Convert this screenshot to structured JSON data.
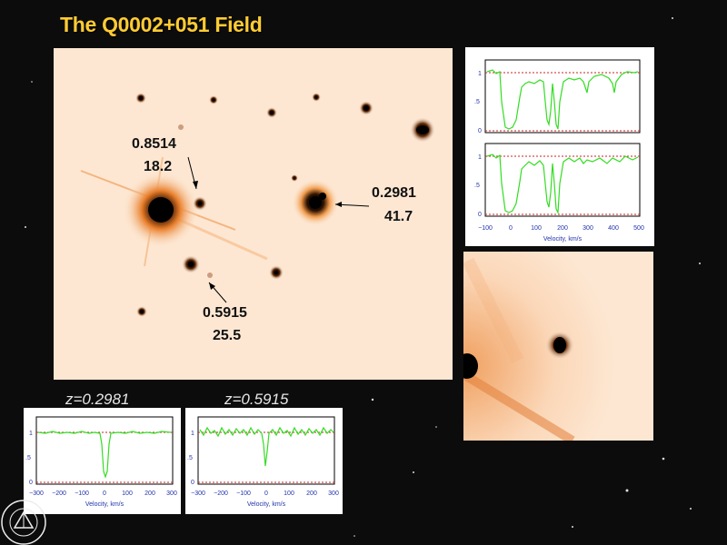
{
  "title": "The Q0002+051 Field",
  "galaxies": [
    {
      "redshift": "0.8514",
      "value": "18.2"
    },
    {
      "redshift": "0.2981",
      "value": "41.7"
    },
    {
      "redshift": "0.5915",
      "value": "25.5"
    }
  ],
  "spectra": {
    "bottom_left_label": "z=0.2981",
    "bottom_right_label": "z=0.5915",
    "x_axis_label": "Velocity, km/s",
    "y_ticks": [
      "1",
      ".5",
      "0"
    ],
    "bottom_x_ticks": [
      "−300",
      "−200",
      "−100",
      "0",
      "100",
      "200",
      "300"
    ],
    "right_x_ticks": [
      "−100",
      "0",
      "100",
      "200",
      "300",
      "400",
      "500"
    ]
  },
  "colors": {
    "title": "#ffcc33",
    "image_bg": "#fde7d2",
    "spectrum_line": "#33dd22",
    "continuum_line": "#cc2222",
    "axis_text": "#2233aa"
  }
}
